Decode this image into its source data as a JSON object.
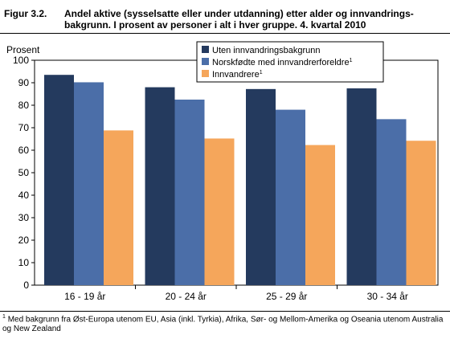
{
  "figure": {
    "label": "Figur 3.2.",
    "title": "Andel aktive (sysselsatte eller under utdanning) etter alder og innvandrings-bakgrunn. I prosent av personer i alt i hver gruppe. 4. kvartal 2010",
    "footnote_marker": "1",
    "footnote": "Med bakgrunn fra Øst-Europa utenom EU, Asia (inkl. Tyrkia), Afrika, Sør- og Mellom-Amerika og Oseania utenom Australia og New Zealand"
  },
  "chart_data": {
    "type": "bar",
    "ylabel": "Prosent",
    "ylim": [
      0,
      100
    ],
    "yticks": [
      0,
      10,
      20,
      30,
      40,
      50,
      60,
      70,
      80,
      90,
      100
    ],
    "categories": [
      "16 - 19 år",
      "20 - 24 år",
      "25 - 29 år",
      "30 - 34 år"
    ],
    "series": [
      {
        "name": "Uten innvandringsbakgrunn",
        "sup": "",
        "color": "#243a5e",
        "values": [
          93.5,
          88,
          87.2,
          87.5
        ]
      },
      {
        "name": "Norskfødte med innvandrerforeldre",
        "sup": "1",
        "color": "#4b6ea8",
        "values": [
          90.2,
          82.5,
          78,
          73.8
        ]
      },
      {
        "name": "Innvandrere",
        "sup": "1",
        "color": "#f5a65b",
        "values": [
          68.8,
          65.2,
          62.3,
          64.2
        ]
      }
    ],
    "legend_position": "top-right",
    "grid": false
  }
}
